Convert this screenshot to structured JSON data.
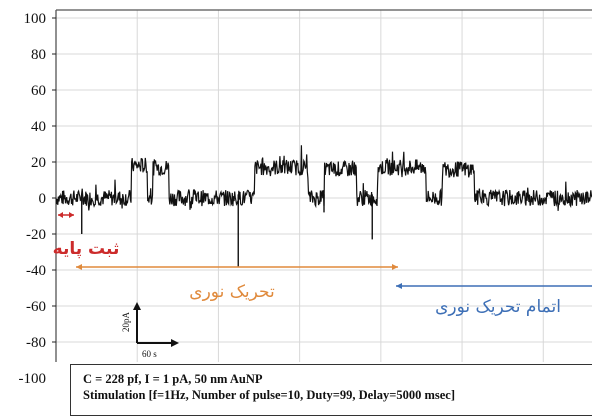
{
  "chart_data": {
    "type": "line",
    "title": "",
    "xlabel": "",
    "ylabel": "",
    "ylim": [
      -100,
      100
    ],
    "y_ticks": [
      100,
      80,
      60,
      40,
      20,
      0,
      -20,
      -40,
      -60,
      -80,
      -100
    ],
    "grid": true,
    "series": [
      {
        "line_color": "#111111",
        "segments": [
          {
            "x": [
              0,
              0.14
            ],
            "y": 0
          },
          {
            "x": [
              0.14,
              0.17
            ],
            "y": 18
          },
          {
            "x": [
              0.17,
              0.18
            ],
            "y": 0
          },
          {
            "x": [
              0.18,
              0.21
            ],
            "y": 17
          },
          {
            "x": [
              0.21,
              0.37
            ],
            "y": 0
          },
          {
            "x": [
              0.37,
              0.47
            ],
            "y": 17
          },
          {
            "x": [
              0.47,
              0.5
            ],
            "y": 0
          },
          {
            "x": [
              0.5,
              0.56
            ],
            "y": 16
          },
          {
            "x": [
              0.56,
              0.6
            ],
            "y": 0
          },
          {
            "x": [
              0.6,
              0.69
            ],
            "y": 17
          },
          {
            "x": [
              0.69,
              0.72
            ],
            "y": 0
          },
          {
            "x": [
              0.72,
              0.78
            ],
            "y": 16
          },
          {
            "x": [
              0.78,
              1.0
            ],
            "y": 0
          }
        ]
      }
    ],
    "spikes": [
      {
        "x": 0.048,
        "y": -20
      },
      {
        "x": 0.34,
        "y": -38
      },
      {
        "x": 0.59,
        "y": -23
      },
      {
        "x": 0.5,
        "y": -8
      }
    ],
    "annotations": {
      "baseline": {
        "text": "ثبت پایه",
        "color": "#cc2b2b"
      },
      "stimulation": {
        "text": "تحریک نوری",
        "color": "#e08a3c"
      },
      "post_stimulation": {
        "text": "اتمام تحریک نوری",
        "color": "#3d6fb6"
      }
    },
    "scale_bar": {
      "y_label": "20pA",
      "x_label": "60 s"
    },
    "caption": [
      "C = 228 pf, I = 1 pA, 50 nm AuNP",
      "Stimulation [f=1Hz, Number of pulse=10, Duty=99, Delay=5000 msec]"
    ]
  }
}
